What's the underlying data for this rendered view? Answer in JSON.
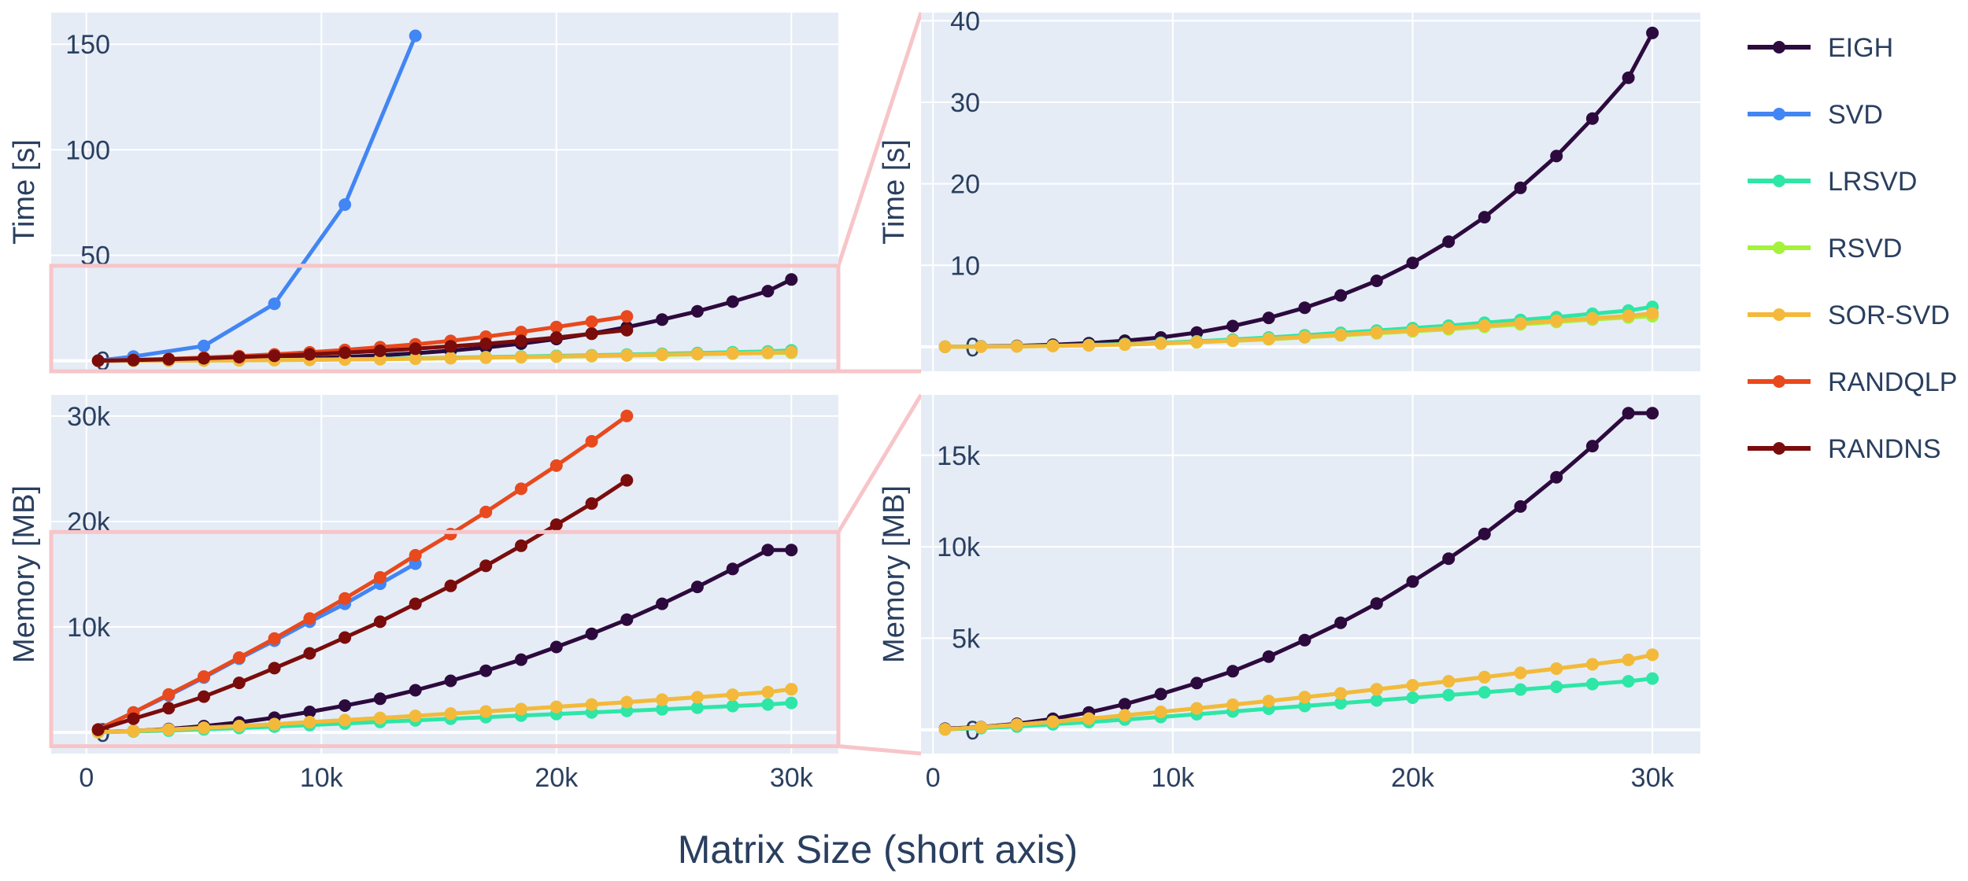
{
  "chart_data": {
    "type": "line",
    "xlabel": "Matrix Size (short axis)",
    "colors": {
      "plot_bg": "#e5ecf6",
      "grid": "#ffffff",
      "text": "#2a3f5f",
      "zoom": "#f7c5c9"
    },
    "x": [
      500,
      2000,
      3500,
      5000,
      6500,
      8000,
      9500,
      11000,
      12500,
      14000,
      15500,
      17000,
      18500,
      20000,
      21500,
      23000,
      24500,
      26000,
      27500,
      29000,
      30000
    ],
    "series": [
      {
        "name": "EIGH",
        "color": "#2d0a3d",
        "time": [
          0.01,
          0.05,
          0.12,
          0.25,
          0.45,
          0.75,
          1.15,
          1.75,
          2.55,
          3.55,
          4.8,
          6.3,
          8.1,
          10.3,
          12.9,
          15.9,
          19.5,
          23.4,
          28.0,
          33.0,
          38.5
        ],
        "memory": [
          60,
          150,
          330,
          600,
          950,
          1400,
          1950,
          2550,
          3200,
          4000,
          4900,
          5850,
          6900,
          8100,
          9350,
          10700,
          12200,
          13800,
          15500,
          17300,
          17300
        ]
      },
      {
        "name": "SVD",
        "color": "#4285f4",
        "time": [
          0.05,
          2.0,
          7.0,
          27.0,
          74.0,
          154.0
        ],
        "memory_x": [
          500,
          2000,
          3500,
          5000,
          6500,
          8000,
          9500,
          11000,
          12500,
          14000
        ],
        "memory": [
          300,
          1900,
          3500,
          5200,
          7000,
          8700,
          10500,
          12200,
          14100,
          16000
        ],
        "time_x": [
          500,
          2000,
          5000,
          8000,
          11000,
          14000
        ]
      },
      {
        "name": "LRSVD",
        "color": "#2ee6a6",
        "time": [
          0.01,
          0.03,
          0.07,
          0.13,
          0.22,
          0.35,
          0.5,
          0.68,
          0.9,
          1.15,
          1.42,
          1.72,
          2.0,
          2.3,
          2.6,
          2.95,
          3.3,
          3.65,
          4.05,
          4.45,
          4.9
        ],
        "memory": [
          20,
          90,
          180,
          300,
          420,
          560,
          700,
          850,
          1000,
          1150,
          1300,
          1450,
          1600,
          1750,
          1900,
          2050,
          2200,
          2350,
          2500,
          2650,
          2800
        ]
      },
      {
        "name": "RSVD",
        "color": "#a4f23c",
        "time": [
          0.01,
          0.02,
          0.05,
          0.1,
          0.17,
          0.27,
          0.4,
          0.55,
          0.72,
          0.92,
          1.15,
          1.4,
          1.65,
          1.9,
          2.15,
          2.45,
          2.75,
          3.05,
          3.35,
          3.6,
          3.75
        ],
        "memory": [
          30,
          140,
          280,
          440,
          610,
          790,
          980,
          1170,
          1370,
          1570,
          1780,
          1990,
          2210,
          2430,
          2650,
          2880,
          3110,
          3340,
          3580,
          3820,
          4100
        ]
      },
      {
        "name": "SOR-SVD",
        "color": "#f4b93b",
        "time": [
          0.01,
          0.02,
          0.05,
          0.1,
          0.18,
          0.28,
          0.42,
          0.58,
          0.76,
          0.98,
          1.22,
          1.48,
          1.75,
          2.02,
          2.3,
          2.6,
          2.9,
          3.2,
          3.5,
          3.8,
          4.1
        ],
        "memory": [
          30,
          140,
          280,
          440,
          610,
          790,
          980,
          1170,
          1370,
          1570,
          1780,
          1990,
          2210,
          2430,
          2650,
          2880,
          3110,
          3340,
          3580,
          3820,
          4100
        ]
      },
      {
        "name": "RANDQLP",
        "color": "#e8491d",
        "time": [
          0.05,
          0.4,
          0.9,
          1.5,
          2.2,
          3.0,
          4.0,
          5.1,
          6.4,
          7.8,
          9.4,
          11.4,
          13.6,
          16.0,
          18.5,
          21.0
        ],
        "memory": [
          300,
          1900,
          3600,
          5300,
          7100,
          8900,
          10800,
          12700,
          14700,
          16800,
          18800,
          20900,
          23100,
          25300,
          27600,
          30000
        ]
      },
      {
        "name": "RANDNS",
        "color": "#7b0c0c",
        "time": [
          0.03,
          0.3,
          0.7,
          1.15,
          1.7,
          2.3,
          3.0,
          3.8,
          4.7,
          5.7,
          6.8,
          8.0,
          9.4,
          11.0,
          12.8,
          14.5
        ],
        "memory": [
          250,
          1300,
          2300,
          3400,
          4700,
          6100,
          7500,
          9000,
          10500,
          12200,
          13900,
          15800,
          17700,
          19700,
          21700,
          23900
        ]
      }
    ],
    "panels": [
      {
        "metric": "time",
        "ylabel": "Time [s]",
        "xrange": [
          -1500,
          32000
        ],
        "yrange": [
          -5,
          165
        ],
        "yticks": [
          0,
          50,
          100,
          150
        ],
        "ytick_labels": [
          "0",
          "50",
          "100",
          "150"
        ],
        "xticks": [
          0,
          10000,
          20000,
          30000
        ],
        "xtick_labels": [
          "",
          "",
          "",
          ""
        ],
        "series": [
          "EIGH",
          "SVD",
          "LRSVD",
          "RSVD",
          "SOR-SVD",
          "RANDQLP",
          "RANDNS"
        ]
      },
      {
        "metric": "time",
        "ylabel": "Time [s]",
        "xrange": [
          -500,
          32000
        ],
        "yrange": [
          -3,
          41
        ],
        "yticks": [
          0,
          10,
          20,
          30,
          40
        ],
        "ytick_labels": [
          "0",
          "10",
          "20",
          "30",
          "40"
        ],
        "xticks": [
          0,
          10000,
          20000,
          30000
        ],
        "xtick_labels": [
          "",
          "",
          "",
          ""
        ],
        "series": [
          "EIGH",
          "LRSVD",
          "RSVD",
          "SOR-SVD"
        ]
      },
      {
        "metric": "memory",
        "ylabel": "Memory [MB]",
        "xrange": [
          -1500,
          32000
        ],
        "yrange": [
          -2000,
          32000
        ],
        "yticks": [
          0,
          10000,
          20000,
          30000
        ],
        "ytick_labels": [
          "0",
          "10k",
          "20k",
          "30k"
        ],
        "xticks": [
          0,
          10000,
          20000,
          30000
        ],
        "xtick_labels": [
          "0",
          "10k",
          "20k",
          "30k"
        ],
        "series": [
          "EIGH",
          "SVD",
          "LRSVD",
          "RSVD",
          "SOR-SVD",
          "RANDQLP",
          "RANDNS"
        ]
      },
      {
        "metric": "memory",
        "ylabel": "Memory [MB]",
        "xrange": [
          -500,
          32000
        ],
        "yrange": [
          -1300,
          18300
        ],
        "yticks": [
          0,
          5000,
          10000,
          15000
        ],
        "ytick_labels": [
          "0",
          "5k",
          "10k",
          "15k"
        ],
        "xticks": [
          0,
          10000,
          20000,
          30000
        ],
        "xtick_labels": [
          "0",
          "10k",
          "20k",
          "30k"
        ],
        "series": [
          "EIGH",
          "LRSVD",
          "RSVD",
          "SOR-SVD"
        ]
      }
    ],
    "zoom_regions": [
      {
        "source_panel": 0,
        "target_panel": 1,
        "x": [
          -1500,
          32000
        ],
        "y": [
          -5,
          45
        ]
      },
      {
        "source_panel": 2,
        "target_panel": 3,
        "x": [
          -1500,
          32000
        ],
        "y": [
          -1300,
          19000
        ]
      }
    ],
    "legend": [
      "EIGH",
      "SVD",
      "LRSVD",
      "RSVD",
      "SOR-SVD",
      "RANDQLP",
      "RANDNS"
    ],
    "legend_position": "right"
  }
}
